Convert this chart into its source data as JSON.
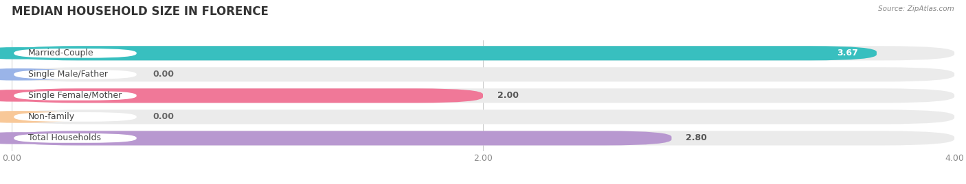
{
  "title": "MEDIAN HOUSEHOLD SIZE IN FLORENCE",
  "source": "Source: ZipAtlas.com",
  "categories": [
    "Married-Couple",
    "Single Male/Father",
    "Single Female/Mother",
    "Non-family",
    "Total Households"
  ],
  "values": [
    3.67,
    0.0,
    2.0,
    0.0,
    2.8
  ],
  "bar_colors": [
    "#38bfbf",
    "#9ab4e8",
    "#f07898",
    "#f8c898",
    "#b898d0"
  ],
  "bg_colors": [
    "#efefef",
    "#efefef",
    "#efefef",
    "#efefef",
    "#efefef"
  ],
  "xlim": [
    0,
    4.0
  ],
  "xticks": [
    0.0,
    2.0,
    4.0
  ],
  "background": "#ffffff",
  "title_fontsize": 12,
  "tick_fontsize": 9,
  "bar_fontsize": 9,
  "label_fontsize": 9
}
